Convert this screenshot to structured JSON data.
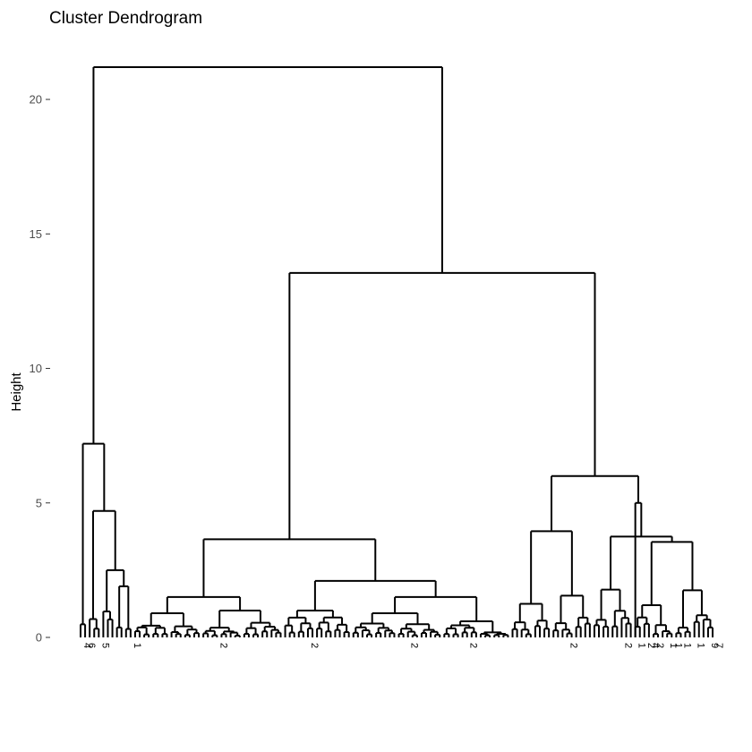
{
  "chart_data": {
    "type": "dendrogram",
    "title": "Cluster Dendrogram",
    "xlabel": "",
    "ylabel": "Height",
    "ylim": [
      0,
      21.2
    ],
    "y_ticks": [
      0,
      5,
      10,
      15,
      20
    ],
    "grid": false,
    "leaf_count": 140,
    "leaf_labels": [
      "4",
      "6",
      "",
      "",
      "5",
      "",
      "",
      "",
      "",
      "",
      "",
      "1",
      "",
      "",
      "",
      "",
      "",
      "",
      "",
      "",
      "",
      "",
      "",
      "",
      "",
      "",
      "",
      "",
      "",
      "",
      "2",
      "",
      "",
      "",
      "",
      "",
      "",
      "",
      "",
      "",
      "",
      "",
      "",
      "",
      "",
      "",
      "",
      "",
      "",
      "",
      "2",
      "",
      "",
      "",
      "",
      "",
      "",
      "",
      "",
      "",
      "",
      "",
      "",
      "",
      "",
      "",
      "",
      "",
      "",
      "",
      "",
      "",
      "2",
      "",
      "",
      "",
      "",
      "",
      "",
      "",
      "",
      "",
      "",
      "",
      "",
      "2",
      "",
      "",
      "",
      "",
      "",
      "",
      "",
      "",
      "",
      "",
      "",
      "",
      "",
      "",
      "",
      "",
      "",
      "",
      "",
      "",
      "",
      "2",
      "",
      "",
      "",
      "",
      "",
      "",
      "",
      "",
      "",
      "",
      "",
      "2",
      "",
      "",
      "1",
      "",
      "2",
      "4",
      "2",
      "",
      "",
      "1",
      "1",
      "",
      "1",
      "",
      "",
      "1",
      "",
      "",
      "9",
      "7"
    ],
    "clusters": {
      "left": {
        "leaves": [
          0,
          12
        ],
        "heights": [
          7.2,
          4.7,
          2.5,
          1.9
        ]
      },
      "middle": {
        "leaves": [
          12,
          95
        ],
        "heights": [
          3.65,
          1.5,
          1.0,
          2.1,
          1.5,
          0.9
        ]
      },
      "right": {
        "leaves": [
          95,
          140
        ],
        "heights": [
          6.0,
          3.95,
          1.25,
          1.55,
          5.0,
          3.55,
          1.75
        ]
      }
    },
    "merges": [
      {
        "name": "middle+right",
        "height": 13.55
      },
      {
        "name": "root",
        "height": 21.2
      }
    ]
  }
}
